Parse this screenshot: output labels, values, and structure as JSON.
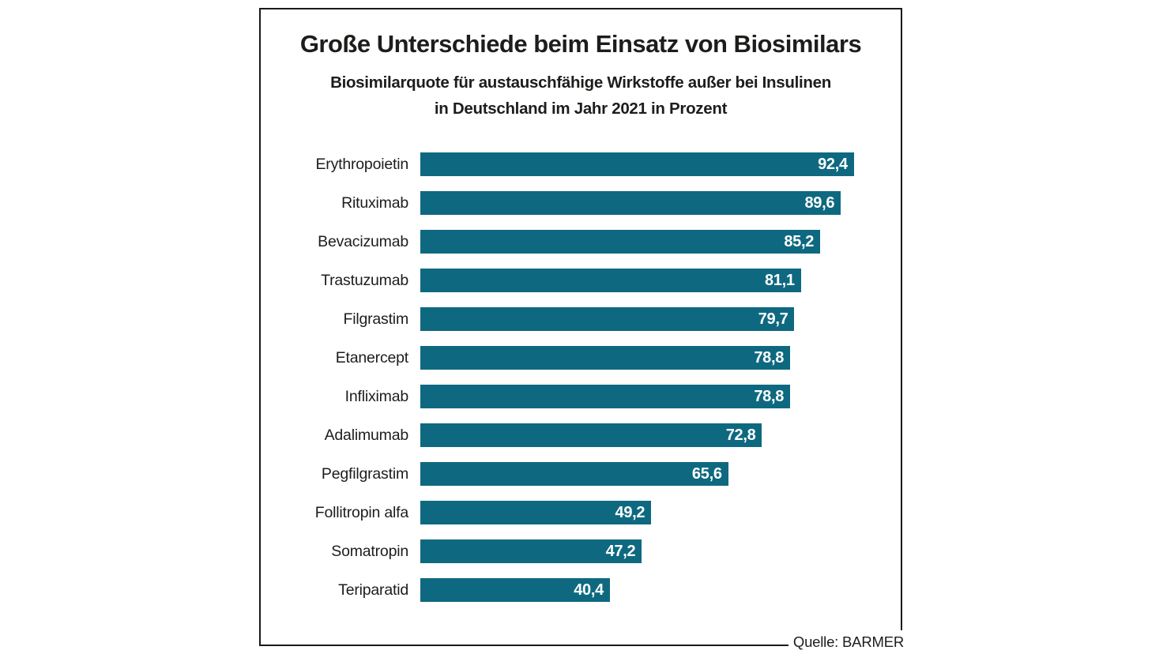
{
  "colors": {
    "bar": "#0e6980",
    "bar_value_text": "#ffffff",
    "text": "#1d1d1b",
    "frame_border": "#1a1a1a",
    "background": "#ffffff"
  },
  "header": {
    "title": "Große Unterschiede beim Einsatz von Biosimilars",
    "subtitle_lines": [
      "Biosimilarquote für austauschfähige Wirkstoffe außer bei Insulinen",
      "in Deutschland im Jahr 2021 in Prozent"
    ]
  },
  "source": {
    "label": "Quelle: BARMER"
  },
  "chart_data": {
    "type": "bar",
    "orientation": "horizontal",
    "title": "Große Unterschiede beim Einsatz von Biosimilars",
    "subtitle": "Biosimilarquote für austauschfähige Wirkstoffe außer bei Insulinen in Deutschland im Jahr 2021 in Prozent",
    "unit": "Prozent",
    "categories": [
      "Erythropoietin",
      "Rituximab",
      "Bevacizumab",
      "Trastuzumab",
      "Filgrastim",
      "Etanercept",
      "Infliximab",
      "Adalimumab",
      "Pegfilgrastim",
      "Follitropin alfa",
      "Somatropin",
      "Teriparatid"
    ],
    "values": [
      92.4,
      89.6,
      85.2,
      81.1,
      79.7,
      78.8,
      78.8,
      72.8,
      65.6,
      49.2,
      47.2,
      40.4
    ],
    "value_labels": [
      "92,4",
      "89,6",
      "85,2",
      "81,1",
      "79,7",
      "78,8",
      "78,8",
      "72,8",
      "65,6",
      "49,2",
      "47,2",
      "40,4"
    ],
    "xlim": [
      0,
      100
    ],
    "grid": false,
    "legend": false,
    "value_label_position": "inside-end",
    "bar_color": "#0e6980",
    "source": "Quelle: BARMER"
  }
}
